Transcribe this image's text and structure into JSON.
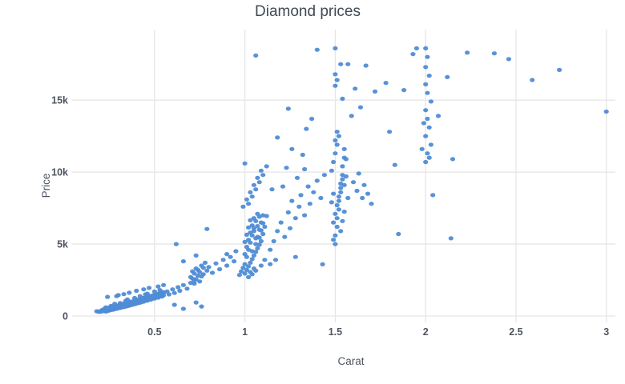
{
  "chart_data": {
    "type": "scatter",
    "title": "Diamond prices",
    "xlabel": "Carat",
    "ylabel": "Price",
    "xlim": [
      0.075,
      3.05
    ],
    "ylim": [
      0,
      19900
    ],
    "x_ticks": [
      0.5,
      1,
      1.5,
      2,
      2.5,
      3
    ],
    "x_tick_labels": [
      "0.5",
      "1",
      "1.5",
      "2",
      "2.5",
      "3"
    ],
    "y_ticks": [
      0,
      5000,
      10000,
      15000
    ],
    "y_tick_labels": [
      "0",
      "5k",
      "10k",
      "15k"
    ],
    "grid": true,
    "legend": false,
    "background_color": "#ffffff",
    "gridline_color": "#e6e6e6",
    "marker_color": "#4f8cd5",
    "points": [
      [
        0.2,
        290
      ],
      [
        0.21,
        326
      ],
      [
        0.21,
        410
      ],
      [
        0.22,
        358
      ],
      [
        0.22,
        470
      ],
      [
        0.23,
        384
      ],
      [
        0.23,
        310
      ],
      [
        0.24,
        420
      ],
      [
        0.24,
        520
      ],
      [
        0.25,
        505
      ],
      [
        0.25,
        390
      ],
      [
        0.26,
        466
      ],
      [
        0.26,
        560
      ],
      [
        0.27,
        542
      ],
      [
        0.27,
        440
      ],
      [
        0.28,
        558
      ],
      [
        0.28,
        640
      ],
      [
        0.29,
        610
      ],
      [
        0.29,
        500
      ],
      [
        0.3,
        640
      ],
      [
        0.3,
        720
      ],
      [
        0.31,
        680
      ],
      [
        0.31,
        560
      ],
      [
        0.32,
        702
      ],
      [
        0.32,
        800
      ],
      [
        0.33,
        748
      ],
      [
        0.33,
        620
      ],
      [
        0.34,
        775
      ],
      [
        0.34,
        880
      ],
      [
        0.35,
        820
      ],
      [
        0.35,
        690
      ],
      [
        0.36,
        858
      ],
      [
        0.36,
        950
      ],
      [
        0.37,
        892
      ],
      [
        0.37,
        760
      ],
      [
        0.38,
        930
      ],
      [
        0.38,
        1020
      ],
      [
        0.39,
        960
      ],
      [
        0.39,
        830
      ],
      [
        0.4,
        1005
      ],
      [
        0.4,
        1100
      ],
      [
        0.41,
        1040
      ],
      [
        0.41,
        900
      ],
      [
        0.42,
        1082
      ],
      [
        0.42,
        1180
      ],
      [
        0.43,
        1120
      ],
      [
        0.43,
        980
      ],
      [
        0.44,
        1160
      ],
      [
        0.44,
        1260
      ],
      [
        0.45,
        1195
      ],
      [
        0.45,
        1060
      ],
      [
        0.46,
        1240
      ],
      [
        0.46,
        1330
      ],
      [
        0.47,
        1280
      ],
      [
        0.47,
        1140
      ],
      [
        0.48,
        1322
      ],
      [
        0.48,
        1400
      ],
      [
        0.49,
        1365
      ],
      [
        0.49,
        1210
      ],
      [
        0.5,
        1410
      ],
      [
        0.5,
        1480
      ],
      [
        0.51,
        1450
      ],
      [
        0.51,
        1290
      ],
      [
        0.52,
        1490
      ],
      [
        0.52,
        1550
      ],
      [
        0.53,
        1530
      ],
      [
        0.53,
        1360
      ],
      [
        0.54,
        1568
      ],
      [
        0.54,
        1640
      ],
      [
        0.55,
        1610
      ],
      [
        0.55,
        1430
      ],
      [
        0.2,
        340
      ],
      [
        0.21,
        370
      ],
      [
        0.22,
        405
      ],
      [
        0.23,
        455
      ],
      [
        0.24,
        345
      ],
      [
        0.25,
        600
      ],
      [
        0.26,
        420
      ],
      [
        0.27,
        660
      ],
      [
        0.28,
        480
      ],
      [
        0.29,
        720
      ],
      [
        0.3,
        540
      ],
      [
        0.31,
        790
      ],
      [
        0.32,
        600
      ],
      [
        0.33,
        860
      ],
      [
        0.34,
        660
      ],
      [
        0.35,
        930
      ],
      [
        0.36,
        720
      ],
      [
        0.37,
        1000
      ],
      [
        0.38,
        790
      ],
      [
        0.39,
        1070
      ],
      [
        0.4,
        860
      ],
      [
        0.41,
        1140
      ],
      [
        0.42,
        930
      ],
      [
        0.43,
        1210
      ],
      [
        0.44,
        1000
      ],
      [
        0.45,
        1280
      ],
      [
        0.46,
        1070
      ],
      [
        0.47,
        1350
      ],
      [
        0.48,
        1140
      ],
      [
        0.49,
        1420
      ],
      [
        0.5,
        1210
      ],
      [
        0.51,
        1500
      ],
      [
        0.52,
        1280
      ],
      [
        0.53,
        1580
      ],
      [
        0.54,
        1350
      ],
      [
        0.55,
        1660
      ],
      [
        0.19,
        300
      ],
      [
        0.18,
        330
      ],
      [
        0.24,
        1330
      ],
      [
        0.29,
        1380
      ],
      [
        0.3,
        1450
      ],
      [
        0.33,
        1520
      ],
      [
        0.36,
        1620
      ],
      [
        0.4,
        1750
      ],
      [
        0.44,
        1850
      ],
      [
        0.47,
        1950
      ],
      [
        0.52,
        2050
      ],
      [
        0.55,
        2150
      ],
      [
        0.23,
        600
      ],
      [
        0.26,
        700
      ],
      [
        0.31,
        900
      ],
      [
        0.34,
        1050
      ],
      [
        0.39,
        1250
      ],
      [
        0.42,
        1380
      ],
      [
        0.46,
        1550
      ],
      [
        0.5,
        1700
      ],
      [
        0.28,
        850
      ],
      [
        0.35,
        1150
      ],
      [
        0.45,
        1500
      ],
      [
        0.53,
        1800
      ],
      [
        0.57,
        1700
      ],
      [
        0.58,
        1500
      ],
      [
        0.6,
        1850
      ],
      [
        0.61,
        1600
      ],
      [
        0.61,
        780
      ],
      [
        0.63,
        2000
      ],
      [
        0.64,
        1750
      ],
      [
        0.66,
        2150
      ],
      [
        0.66,
        500
      ],
      [
        0.68,
        1900
      ],
      [
        0.62,
        5000
      ],
      [
        0.66,
        3800
      ],
      [
        0.7,
        2300
      ],
      [
        0.7,
        2700
      ],
      [
        0.71,
        2600
      ],
      [
        0.71,
        3100
      ],
      [
        0.72,
        2450
      ],
      [
        0.72,
        2250
      ],
      [
        0.72,
        2950
      ],
      [
        0.73,
        3300
      ],
      [
        0.73,
        2550
      ],
      [
        0.73,
        940
      ],
      [
        0.73,
        4200
      ],
      [
        0.74,
        2800
      ],
      [
        0.74,
        3200
      ],
      [
        0.75,
        3050
      ],
      [
        0.75,
        2400
      ],
      [
        0.76,
        3500
      ],
      [
        0.76,
        2750
      ],
      [
        0.76,
        660
      ],
      [
        0.77,
        2900
      ],
      [
        0.77,
        3350
      ],
      [
        0.78,
        3700
      ],
      [
        0.79,
        3150
      ],
      [
        0.79,
        6050
      ],
      [
        0.8,
        3400
      ],
      [
        0.82,
        3000
      ],
      [
        0.84,
        3650
      ],
      [
        0.86,
        3250
      ],
      [
        0.88,
        3900
      ],
      [
        0.9,
        3500
      ],
      [
        0.9,
        4300
      ],
      [
        0.92,
        4100
      ],
      [
        0.94,
        3800
      ],
      [
        0.95,
        4500
      ],
      [
        0.97,
        2850
      ],
      [
        0.98,
        3100
      ],
      [
        0.99,
        3350
      ],
      [
        1,
        2950
      ],
      [
        1,
        3600
      ],
      [
        1,
        4300
      ],
      [
        1,
        5150
      ],
      [
        1.01,
        3200
      ],
      [
        1.01,
        4100
      ],
      [
        1.01,
        4800
      ],
      [
        1.01,
        5650
      ],
      [
        1.02,
        3450
      ],
      [
        1.02,
        4600
      ],
      [
        1.02,
        5300
      ],
      [
        1.02,
        6150
      ],
      [
        1.02,
        2700
      ],
      [
        1.03,
        3700
      ],
      [
        1.03,
        5100
      ],
      [
        1.03,
        5800
      ],
      [
        1.03,
        6650
      ],
      [
        1.03,
        3050
      ],
      [
        1.04,
        3950
      ],
      [
        1.04,
        5600
      ],
      [
        1.04,
        6300
      ],
      [
        1.04,
        4500
      ],
      [
        1.04,
        2900
      ],
      [
        1.05,
        4200
      ],
      [
        1.05,
        6100
      ],
      [
        1.05,
        6800
      ],
      [
        1.05,
        5900
      ],
      [
        1.05,
        3300
      ],
      [
        1.06,
        4450
      ],
      [
        1.06,
        6600
      ],
      [
        1.06,
        5000
      ],
      [
        1.06,
        5400
      ],
      [
        1.06,
        3150
      ],
      [
        1.07,
        4700
      ],
      [
        1.07,
        7100
      ],
      [
        1.07,
        5500
      ],
      [
        1.07,
        6250
      ],
      [
        1.08,
        4950
      ],
      [
        1.08,
        5450
      ],
      [
        1.08,
        6000
      ],
      [
        1.08,
        6900
      ],
      [
        1.09,
        5200
      ],
      [
        1.09,
        5950
      ],
      [
        1.09,
        6500
      ],
      [
        1.09,
        3500
      ],
      [
        1.1,
        5700
      ],
      [
        1.1,
        6450
      ],
      [
        1.1,
        7000
      ],
      [
        1.11,
        6200
      ],
      [
        1.11,
        3900
      ],
      [
        1.12,
        6950
      ],
      [
        0.99,
        7600
      ],
      [
        1.01,
        8100
      ],
      [
        1.03,
        8600
      ],
      [
        1.05,
        9100
      ],
      [
        1.07,
        9600
      ],
      [
        1.09,
        10100
      ],
      [
        1.02,
        7800
      ],
      [
        1.04,
        8300
      ],
      [
        1.06,
        8800
      ],
      [
        1.08,
        9300
      ],
      [
        1.1,
        9800
      ],
      [
        1.12,
        10400
      ],
      [
        1,
        10600
      ],
      [
        1.06,
        18100
      ],
      [
        1.14,
        3600
      ],
      [
        1.17,
        3900
      ],
      [
        1.28,
        4100
      ],
      [
        1.43,
        3590
      ],
      [
        1.14,
        4600
      ],
      [
        1.15,
        8800
      ],
      [
        1.16,
        5200
      ],
      [
        1.18,
        5900
      ],
      [
        1.18,
        12400
      ],
      [
        1.2,
        6500
      ],
      [
        1.21,
        9000
      ],
      [
        1.22,
        5500
      ],
      [
        1.23,
        10300
      ],
      [
        1.24,
        7200
      ],
      [
        1.24,
        14400
      ],
      [
        1.25,
        6100
      ],
      [
        1.26,
        8000
      ],
      [
        1.26,
        11600
      ],
      [
        1.28,
        6800
      ],
      [
        1.29,
        9600
      ],
      [
        1.3,
        7600
      ],
      [
        1.31,
        8400
      ],
      [
        1.32,
        11200
      ],
      [
        1.33,
        7000
      ],
      [
        1.33,
        10200
      ],
      [
        1.34,
        13000
      ],
      [
        1.35,
        9000
      ],
      [
        1.36,
        7800
      ],
      [
        1.37,
        13700
      ],
      [
        1.38,
        8600
      ],
      [
        1.4,
        9400
      ],
      [
        1.4,
        18500
      ],
      [
        1.42,
        8200
      ],
      [
        1.44,
        9800
      ],
      [
        1.48,
        10100
      ],
      [
        1.48,
        7900
      ],
      [
        1.49,
        5300
      ],
      [
        1.49,
        6500
      ],
      [
        1.49,
        10700
      ],
      [
        1.49,
        8500
      ],
      [
        1.5,
        5000
      ],
      [
        1.5,
        5600
      ],
      [
        1.5,
        7100
      ],
      [
        1.5,
        11300
      ],
      [
        1.5,
        12200
      ],
      [
        1.5,
        16000
      ],
      [
        1.5,
        16800
      ],
      [
        1.5,
        18600
      ],
      [
        1.51,
        6200
      ],
      [
        1.51,
        6800
      ],
      [
        1.51,
        7700
      ],
      [
        1.51,
        11900
      ],
      [
        1.51,
        12800
      ],
      [
        1.51,
        16400
      ],
      [
        1.52,
        7400
      ],
      [
        1.52,
        8000
      ],
      [
        1.52,
        8300
      ],
      [
        1.52,
        12500
      ],
      [
        1.53,
        8600
      ],
      [
        1.53,
        9200
      ],
      [
        1.53,
        8900
      ],
      [
        1.53,
        5900
      ],
      [
        1.53,
        17500
      ],
      [
        1.54,
        9800
      ],
      [
        1.54,
        10400
      ],
      [
        1.54,
        9500
      ],
      [
        1.54,
        6600
      ],
      [
        1.54,
        15100
      ],
      [
        1.55,
        11000
      ],
      [
        1.55,
        11600
      ],
      [
        1.55,
        7250
      ],
      [
        1.55,
        9100
      ],
      [
        1.56,
        9700
      ],
      [
        1.56,
        10900
      ],
      [
        1.57,
        8200
      ],
      [
        1.57,
        17500
      ],
      [
        1.59,
        13900
      ],
      [
        1.61,
        15800
      ],
      [
        1.6,
        9300
      ],
      [
        1.62,
        8700
      ],
      [
        1.63,
        9900
      ],
      [
        1.65,
        8200
      ],
      [
        1.66,
        9100
      ],
      [
        1.68,
        8500
      ],
      [
        1.64,
        14500
      ],
      [
        1.67,
        17400
      ],
      [
        1.7,
        7800
      ],
      [
        1.72,
        15600
      ],
      [
        1.78,
        16200
      ],
      [
        1.8,
        12800
      ],
      [
        1.83,
        10500
      ],
      [
        1.85,
        5700
      ],
      [
        1.88,
        15700
      ],
      [
        1.93,
        18200
      ],
      [
        1.95,
        18600
      ],
      [
        1.98,
        11600
      ],
      [
        1.99,
        13400
      ],
      [
        2,
        18600
      ],
      [
        2,
        17300
      ],
      [
        2,
        16100
      ],
      [
        2,
        14300
      ],
      [
        2,
        12500
      ],
      [
        2,
        10700
      ],
      [
        2.01,
        18000
      ],
      [
        2.01,
        15500
      ],
      [
        2.01,
        13700
      ],
      [
        2.01,
        11300
      ],
      [
        2.02,
        16700
      ],
      [
        2.02,
        13100
      ],
      [
        2.02,
        11000
      ],
      [
        2.03,
        14900
      ],
      [
        2.03,
        11900
      ],
      [
        2.04,
        8400
      ],
      [
        2.07,
        13900
      ],
      [
        2.12,
        16600
      ],
      [
        2.14,
        5400
      ],
      [
        2.15,
        10900
      ],
      [
        2.23,
        18300
      ],
      [
        2.38,
        18250
      ],
      [
        2.46,
        17850
      ],
      [
        2.59,
        16400
      ],
      [
        2.74,
        17100
      ],
      [
        3,
        14200
      ]
    ]
  }
}
